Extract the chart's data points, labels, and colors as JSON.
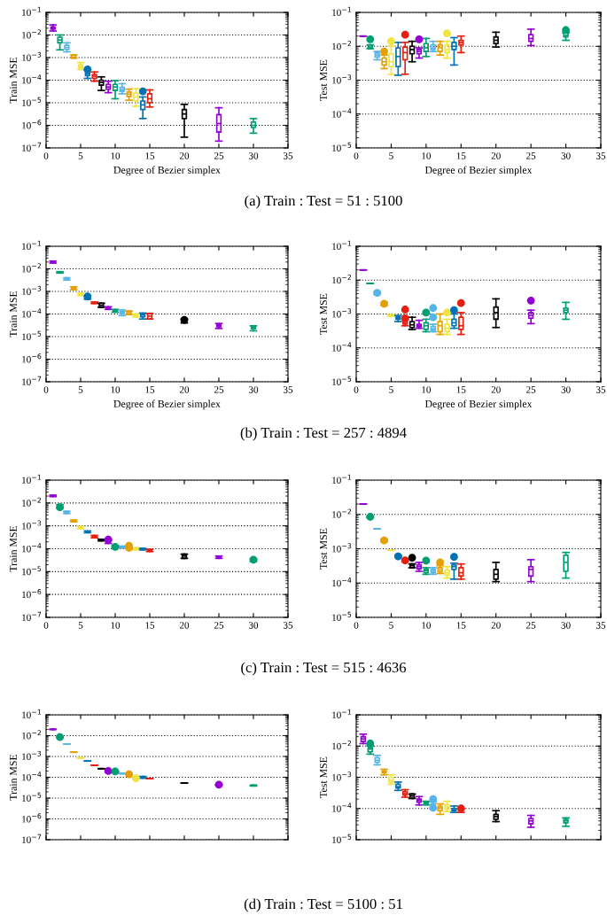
{
  "chart_data": [
    {
      "type": "box",
      "ylabel": "Train MSE",
      "xlabel": "Degree of Bezier simplex",
      "annotations": [
        "(a) Train : Test = 51 : 5100"
      ],
      "x": [
        1,
        2,
        3,
        4,
        5,
        6,
        7,
        8,
        9,
        10,
        11,
        12,
        13,
        14,
        15,
        20,
        25,
        30
      ],
      "colors": [
        "#9400d3",
        "#009e73",
        "#56b4e9",
        "#e69f00",
        "#f0e442",
        "#0072b2",
        "#e51e10",
        "#000000",
        "#9400d3",
        "#009e73",
        "#56b4e9",
        "#e69f00",
        "#f0e442",
        "#0072b2",
        "#e51e10",
        "#000000",
        "#9400d3",
        "#009e73"
      ],
      "boxes": [
        {
          "low": 0.015,
          "q1": 0.018,
          "median": 0.02,
          "q3": 0.023,
          "high": 0.028
        },
        {
          "low": 0.0022,
          "q1": 0.0045,
          "median": 0.006,
          "q3": 0.008,
          "high": 0.01
        },
        {
          "low": 0.0018,
          "q1": 0.0023,
          "median": 0.0028,
          "q3": 0.0035,
          "high": 0.0045
        },
        {
          "low": 0.00095,
          "q1": 0.00095,
          "median": 0.00105,
          "q3": 0.0013,
          "high": 0.0013
        },
        {
          "low": 0.0003,
          "q1": 0.00035,
          "median": 0.0004,
          "q3": 0.00048,
          "high": 0.0006
        },
        {
          "low": 0.00012,
          "q1": 0.00016,
          "median": 0.00019,
          "q3": 0.00023,
          "high": 0.00028,
          "outliers": [
            0.0003
          ]
        },
        {
          "low": 9e-05,
          "q1": 0.00012,
          "median": 0.00015,
          "q3": 0.00018,
          "high": 0.00023
        },
        {
          "low": 3.5e-05,
          "q1": 6e-05,
          "median": 8e-05,
          "q3": 0.0001,
          "high": 0.00014
        },
        {
          "low": 2.8e-05,
          "q1": 4e-05,
          "median": 5e-05,
          "q3": 6.5e-05,
          "high": 9e-05
        },
        {
          "low": 1.5e-05,
          "q1": 3.5e-05,
          "median": 5e-05,
          "q3": 6.5e-05,
          "high": 9.5e-05
        },
        {
          "low": 2.5e-05,
          "q1": 3.2e-05,
          "median": 3.8e-05,
          "q3": 4.8e-05,
          "high": 7e-05
        },
        {
          "low": 1.3e-05,
          "q1": 1.9e-05,
          "median": 2.4e-05,
          "q3": 3e-05,
          "high": 4e-05
        },
        {
          "low": 7e-06,
          "q1": 1.2e-05,
          "median": 1.8e-05,
          "q3": 2.7e-05,
          "high": 4.2e-05
        },
        {
          "low": 2e-06,
          "q1": 5e-06,
          "median": 8e-06,
          "q3": 1.2e-05,
          "high": 1.8e-05,
          "outliers": [
            3.2e-05
          ]
        },
        {
          "low": 6.5e-06,
          "q1": 1e-05,
          "median": 1.5e-05,
          "q3": 2.5e-05,
          "high": 3.7e-05
        },
        {
          "low": 3e-07,
          "q1": 2e-06,
          "median": 3.2e-06,
          "q3": 5e-06,
          "high": 8.5e-06
        },
        {
          "low": 2e-07,
          "q1": 5e-07,
          "median": 1.2e-06,
          "q3": 3e-06,
          "high": 6e-06
        },
        {
          "low": 4.5e-07,
          "q1": 8e-07,
          "median": 1e-06,
          "q3": 1.4e-06,
          "high": 2e-06
        }
      ],
      "xlim": [
        0,
        35
      ],
      "xticks": [
        0,
        5,
        10,
        15,
        20,
        25,
        30,
        35
      ],
      "ylim": [
        1e-07,
        0.1
      ],
      "yticks": [
        {
          "value": 1e-07,
          "label": "10$^{−7}$"
        },
        {
          "value": 1e-06,
          "label": "10$^{−6}$"
        },
        {
          "value": 1e-05,
          "label": "10$^{−5}$"
        },
        {
          "value": 0.0001,
          "label": "10$^{−4}$"
        },
        {
          "value": 0.001,
          "label": "10$^{−3}$"
        },
        {
          "value": 0.01,
          "label": "10$^{−2}$"
        },
        {
          "value": 0.1,
          "label": "10$^{−1}$"
        }
      ],
      "log": "y",
      "grid": "y"
    },
    {
      "type": "box",
      "ylabel": "Test MSE",
      "xlabel": "Degree of Bezier simplex",
      "x": [
        1,
        2,
        3,
        4,
        5,
        6,
        7,
        8,
        9,
        10,
        11,
        12,
        13,
        14,
        15,
        20,
        25,
        30
      ],
      "colors": [
        "#9400d3",
        "#009e73",
        "#56b4e9",
        "#e69f00",
        "#f0e442",
        "#0072b2",
        "#e51e10",
        "#000000",
        "#9400d3",
        "#009e73",
        "#56b4e9",
        "#e69f00",
        "#f0e442",
        "#0072b2",
        "#e51e10",
        "#000000",
        "#9400d3",
        "#009e73"
      ],
      "boxes": [
        {
          "low": 0.02,
          "q1": 0.02,
          "median": 0.02,
          "q3": 0.02,
          "high": 0.02
        },
        {
          "low": 0.0085,
          "q1": 0.0085,
          "median": 0.0095,
          "q3": 0.011,
          "high": 0.011,
          "outliers": [
            0.016
          ]
        },
        {
          "low": 0.004,
          "q1": 0.0048,
          "median": 0.0055,
          "q3": 0.0063,
          "high": 0.007
        },
        {
          "low": 0.0022,
          "q1": 0.0028,
          "median": 0.0035,
          "q3": 0.0045,
          "high": 0.0055,
          "outliers": [
            0.007
          ]
        },
        {
          "low": 0.0015,
          "q1": 0.0025,
          "median": 0.0035,
          "q3": 0.006,
          "high": 0.01,
          "outliers": [
            0.014
          ]
        },
        {
          "low": 0.0014,
          "q1": 0.0025,
          "median": 0.005,
          "q3": 0.009,
          "high": 0.013
        },
        {
          "low": 0.0015,
          "q1": 0.004,
          "median": 0.0065,
          "q3": 0.0095,
          "high": 0.013,
          "outliers": [
            0.022
          ]
        },
        {
          "low": 0.0035,
          "q1": 0.006,
          "median": 0.008,
          "q3": 0.01,
          "high": 0.014
        },
        {
          "low": 0.0045,
          "q1": 0.006,
          "median": 0.007,
          "q3": 0.008,
          "high": 0.009,
          "outliers": [
            0.016
          ]
        },
        {
          "low": 0.005,
          "q1": 0.007,
          "median": 0.009,
          "q3": 0.012,
          "high": 0.017
        },
        {
          "low": 0.007,
          "q1": 0.008,
          "median": 0.009,
          "q3": 0.011,
          "high": 0.014
        },
        {
          "low": 0.0055,
          "q1": 0.007,
          "median": 0.009,
          "q3": 0.011,
          "high": 0.014
        },
        {
          "low": 0.0045,
          "q1": 0.0065,
          "median": 0.008,
          "q3": 0.011,
          "high": 0.014,
          "outliers": [
            0.024
          ]
        },
        {
          "low": 0.0028,
          "q1": 0.008,
          "median": 0.01,
          "q3": 0.013,
          "high": 0.018
        },
        {
          "low": 0.0065,
          "q1": 0.011,
          "median": 0.013,
          "q3": 0.015,
          "high": 0.02
        },
        {
          "low": 0.0095,
          "q1": 0.012,
          "median": 0.015,
          "q3": 0.019,
          "high": 0.026
        },
        {
          "low": 0.0105,
          "q1": 0.014,
          "median": 0.017,
          "q3": 0.022,
          "high": 0.032
        },
        {
          "low": 0.015,
          "q1": 0.019,
          "median": 0.021,
          "q3": 0.025,
          "high": 0.025,
          "outliers": [
            0.03
          ]
        }
      ],
      "xlim": [
        0,
        35
      ],
      "xticks": [
        0,
        5,
        10,
        15,
        20,
        25,
        30,
        35
      ],
      "ylim": [
        1e-05,
        0.1
      ],
      "yticks": [
        {
          "value": 1e-05,
          "label": "10$^{−5}$"
        },
        {
          "value": 0.0001,
          "label": "10$^{−4}$"
        },
        {
          "value": 0.001,
          "label": "10$^{−3}$"
        },
        {
          "value": 0.01,
          "label": "10$^{−2}$"
        },
        {
          "value": 0.1,
          "label": "10$^{−1}$"
        }
      ],
      "log": "y",
      "grid": "y"
    },
    {
      "type": "box",
      "ylabel": "Train MSE",
      "xlabel": "Degree of Bezier simplex",
      "annotations": [
        "(b) Train : Test = 257 : 4894"
      ],
      "x": [
        1,
        2,
        3,
        4,
        5,
        6,
        7,
        8,
        9,
        10,
        11,
        12,
        13,
        14,
        15,
        20,
        25,
        30
      ],
      "colors": [
        "#9400d3",
        "#009e73",
        "#56b4e9",
        "#e69f00",
        "#f0e442",
        "#0072b2",
        "#e51e10",
        "#000000",
        "#9400d3",
        "#009e73",
        "#56b4e9",
        "#e69f00",
        "#f0e442",
        "#0072b2",
        "#e51e10",
        "#000000",
        "#9400d3",
        "#009e73"
      ],
      "boxes": [
        {
          "low": 0.018,
          "q1": 0.019,
          "median": 0.02,
          "q3": 0.021,
          "high": 0.022
        },
        {
          "low": 0.0065,
          "q1": 0.0068,
          "median": 0.007,
          "q3": 0.0072,
          "high": 0.0075
        },
        {
          "low": 0.0032,
          "q1": 0.0032,
          "median": 0.0036,
          "q3": 0.004,
          "high": 0.004
        },
        {
          "low": 0.0012,
          "q1": 0.0013,
          "median": 0.0014,
          "q3": 0.0015,
          "high": 0.0016
        },
        {
          "low": 0.00065,
          "q1": 0.0007,
          "median": 0.00075,
          "q3": 0.0008,
          "high": 0.00085
        },
        {
          "low": 0.00045,
          "q1": 0.0005,
          "median": 0.00055,
          "q3": 0.0006,
          "high": 0.00065,
          "outliers": [
            0.0006
          ]
        },
        {
          "low": 0.00029,
          "q1": 0.0003,
          "median": 0.00031,
          "q3": 0.00032,
          "high": 0.00034
        },
        {
          "low": 0.0002,
          "q1": 0.0002,
          "median": 0.00024,
          "q3": 0.0003,
          "high": 0.0003
        },
        {
          "low": 0.00016,
          "q1": 0.00017,
          "median": 0.00018,
          "q3": 0.00019,
          "high": 0.00021
        },
        {
          "low": 0.00012,
          "q1": 0.00013,
          "median": 0.00014,
          "q3": 0.00015,
          "high": 0.00016
        },
        {
          "low": 8.5e-05,
          "q1": 0.0001,
          "median": 0.000115,
          "q3": 0.00013,
          "high": 0.00015
        },
        {
          "low": 9.5e-05,
          "q1": 9.5e-05,
          "median": 0.000115,
          "q3": 0.000135,
          "high": 0.000135
        },
        {
          "low": 7.5e-05,
          "q1": 7.5e-05,
          "median": 8.5e-05,
          "q3": 0.0001,
          "high": 0.0001
        },
        {
          "low": 6e-05,
          "q1": 7.5e-05,
          "median": 9e-05,
          "q3": 0.0001,
          "high": 0.00011
        },
        {
          "low": 6e-05,
          "q1": 6e-05,
          "median": 8e-05,
          "q3": 0.000105,
          "high": 0.000105
        },
        {
          "low": 4e-05,
          "q1": 4.5e-05,
          "median": 5e-05,
          "q3": 5.5e-05,
          "high": 6e-05,
          "outliers": [
            5.5e-05
          ]
        },
        {
          "low": 2.3e-05,
          "q1": 2.7e-05,
          "median": 3e-05,
          "q3": 3.3e-05,
          "high": 3.8e-05
        },
        {
          "low": 1.8e-05,
          "q1": 2.2e-05,
          "median": 2.5e-05,
          "q3": 2.8e-05,
          "high": 3e-05
        }
      ],
      "xlim": [
        0,
        35
      ],
      "xticks": [
        0,
        5,
        10,
        15,
        20,
        25,
        30,
        35
      ],
      "ylim": [
        1e-07,
        0.1
      ],
      "yticks": [
        {
          "value": 1e-07,
          "label": "10$^{−7}$"
        },
        {
          "value": 1e-06,
          "label": "10$^{−6}$"
        },
        {
          "value": 1e-05,
          "label": "10$^{−5}$"
        },
        {
          "value": 0.0001,
          "label": "10$^{−4}$"
        },
        {
          "value": 0.001,
          "label": "10$^{−3}$"
        },
        {
          "value": 0.01,
          "label": "10$^{−2}$"
        },
        {
          "value": 0.1,
          "label": "10$^{−1}$"
        }
      ],
      "log": "y",
      "grid": "y"
    },
    {
      "type": "box",
      "ylabel": "Test MSE",
      "xlabel": "Degree of Bezier simplex",
      "x": [
        1,
        2,
        3,
        4,
        5,
        6,
        7,
        8,
        9,
        10,
        11,
        12,
        13,
        14,
        15,
        20,
        25,
        30
      ],
      "colors": [
        "#9400d3",
        "#009e73",
        "#56b4e9",
        "#e69f00",
        "#f0e442",
        "#0072b2",
        "#e51e10",
        "#000000",
        "#9400d3",
        "#009e73",
        "#56b4e9",
        "#e69f00",
        "#f0e442",
        "#0072b2",
        "#e51e10",
        "#000000",
        "#9400d3",
        "#009e73"
      ],
      "boxes": [
        {
          "low": 0.02,
          "q1": 0.02,
          "median": 0.02,
          "q3": 0.02,
          "high": 0.02
        },
        {
          "low": 0.008,
          "q1": 0.008,
          "median": 0.008,
          "q3": 0.008,
          "high": 0.008
        },
        {
          "low": 0.0038,
          "q1": 0.004,
          "median": 0.0041,
          "q3": 0.0043,
          "high": 0.0045,
          "outliers": [
            0.0042
          ]
        },
        {
          "low": 0.0018,
          "q1": 0.0019,
          "median": 0.002,
          "q3": 0.0021,
          "high": 0.0022,
          "outliers": [
            0.002
          ]
        },
        {
          "low": 0.00085,
          "q1": 0.00088,
          "median": 0.0009,
          "q3": 0.00093,
          "high": 0.00095
        },
        {
          "low": 0.0006,
          "q1": 0.0007,
          "median": 0.00075,
          "q3": 0.00082,
          "high": 0.0009
        },
        {
          "low": 0.00045,
          "q1": 0.0005,
          "median": 0.00055,
          "q3": 0.00065,
          "high": 0.0007,
          "outliers": [
            0.00135,
            0.00075
          ]
        },
        {
          "low": 0.00035,
          "q1": 0.0004,
          "median": 0.00048,
          "q3": 0.0006,
          "high": 0.0008
        },
        {
          "low": 0.00038,
          "q1": 0.00042,
          "median": 0.00045,
          "q3": 0.0005,
          "high": 0.00065
        },
        {
          "low": 0.0003,
          "q1": 0.00035,
          "median": 0.00045,
          "q3": 0.00055,
          "high": 0.0007,
          "outliers": [
            0.0011
          ]
        },
        {
          "low": 0.0003,
          "q1": 0.00033,
          "median": 0.00037,
          "q3": 0.00043,
          "high": 0.0005,
          "outliers": [
            0.0015,
            0.0008
          ]
        },
        {
          "low": 0.00025,
          "q1": 0.0003,
          "median": 0.00045,
          "q3": 0.0006,
          "high": 0.001
        },
        {
          "low": 0.00025,
          "q1": 0.0003,
          "median": 0.00038,
          "q3": 0.0005,
          "high": 0.0007,
          "outliers": [
            0.0011
          ]
        },
        {
          "low": 0.00038,
          "q1": 0.00045,
          "median": 0.00055,
          "q3": 0.0007,
          "high": 0.001,
          "outliers": [
            0.0013
          ]
        },
        {
          "low": 0.00025,
          "q1": 0.00035,
          "median": 0.00045,
          "q3": 0.0008,
          "high": 0.0011,
          "outliers": [
            0.0021
          ]
        },
        {
          "low": 0.0004,
          "q1": 0.0007,
          "median": 0.0011,
          "q3": 0.0016,
          "high": 0.0028
        },
        {
          "low": 0.00052,
          "q1": 0.00075,
          "median": 0.0009,
          "q3": 0.0011,
          "high": 0.0013,
          "outliers": [
            0.0025
          ]
        },
        {
          "low": 0.0007,
          "q1": 0.0011,
          "median": 0.0013,
          "q3": 0.0015,
          "high": 0.0022
        }
      ],
      "xlim": [
        0,
        35
      ],
      "xticks": [
        0,
        5,
        10,
        15,
        20,
        25,
        30,
        35
      ],
      "ylim": [
        1e-05,
        0.1
      ],
      "yticks": [
        {
          "value": 1e-05,
          "label": "10$^{−5}$"
        },
        {
          "value": 0.0001,
          "label": "10$^{−4}$"
        },
        {
          "value": 0.001,
          "label": "10$^{−3}$"
        },
        {
          "value": 0.01,
          "label": "10$^{−2}$"
        },
        {
          "value": 0.1,
          "label": "10$^{−1}$"
        }
      ],
      "log": "y",
      "grid": "y"
    },
    {
      "type": "box",
      "ylabel": "Train MSE",
      "annotations": [
        "(c) Train : Test = 515 : 4636"
      ],
      "x": [
        1,
        2,
        3,
        4,
        5,
        6,
        7,
        8,
        9,
        10,
        11,
        12,
        13,
        14,
        15,
        20,
        25,
        30
      ],
      "colors": [
        "#9400d3",
        "#009e73",
        "#56b4e9",
        "#e69f00",
        "#f0e442",
        "#0072b2",
        "#e51e10",
        "#000000",
        "#9400d3",
        "#009e73",
        "#56b4e9",
        "#e69f00",
        "#f0e442",
        "#0072b2",
        "#e51e10",
        "#000000",
        "#9400d3",
        "#009e73"
      ],
      "boxes": [
        {
          "low": 0.019,
          "q1": 0.02,
          "median": 0.0205,
          "q3": 0.021,
          "high": 0.022
        },
        {
          "low": 0.006,
          "q1": 0.0065,
          "median": 0.007,
          "q3": 0.0075,
          "high": 0.0085,
          "outliers": [
            0.0065
          ]
        },
        {
          "low": 0.0035,
          "q1": 0.0035,
          "median": 0.0039,
          "q3": 0.0043,
          "high": 0.0043
        },
        {
          "low": 0.0015,
          "q1": 0.0016,
          "median": 0.00165,
          "q3": 0.0017,
          "high": 0.0018
        },
        {
          "low": 0.00075,
          "q1": 0.0008,
          "median": 0.00085,
          "q3": 0.0009,
          "high": 0.00095
        },
        {
          "low": 0.0005,
          "q1": 0.00052,
          "median": 0.00055,
          "q3": 0.00057,
          "high": 0.0006
        },
        {
          "low": 0.0003,
          "q1": 0.0003,
          "median": 0.00034,
          "q3": 0.00038,
          "high": 0.00038
        },
        {
          "low": 0.00022,
          "q1": 0.00023,
          "median": 0.00024,
          "q3": 0.00025,
          "high": 0.00026
        },
        {
          "low": 0.00017,
          "q1": 0.00019,
          "median": 0.0002,
          "q3": 0.00021,
          "high": 0.00023,
          "outliers": [
            0.00025
          ]
        },
        {
          "low": 0.00011,
          "q1": 0.00012,
          "median": 0.000125,
          "q3": 0.00013,
          "high": 0.00014,
          "outliers": [
            0.00012
          ]
        },
        {
          "low": 0.00011,
          "q1": 0.000115,
          "median": 0.00012,
          "q3": 0.000125,
          "high": 0.00013
        },
        {
          "low": 0.0001,
          "q1": 0.000105,
          "median": 0.00011,
          "q3": 0.00012,
          "high": 0.00013,
          "outliers": [
            0.000135,
            0.00011
          ]
        },
        {
          "low": 9e-05,
          "q1": 9e-05,
          "median": 0.0001,
          "q3": 0.00011,
          "high": 0.00011
        },
        {
          "low": 9e-05,
          "q1": 9e-05,
          "median": 9.6e-05,
          "q3": 0.000103,
          "high": 0.000103
        },
        {
          "low": 7.5e-05,
          "q1": 8e-05,
          "median": 8.5e-05,
          "q3": 9e-05,
          "high": 9.5e-05
        },
        {
          "low": 3.8e-05,
          "q1": 3.8e-05,
          "median": 4.8e-05,
          "q3": 5.8e-05,
          "high": 5.8e-05
        },
        {
          "low": 3.8e-05,
          "q1": 4e-05,
          "median": 4.2e-05,
          "q3": 4.5e-05,
          "high": 4.8e-05
        },
        {
          "low": 2.8e-05,
          "q1": 3e-05,
          "median": 3.2e-05,
          "q3": 3.4e-05,
          "high": 3.6e-05,
          "outliers": [
            3.3e-05
          ]
        }
      ],
      "xlim": [
        0,
        35
      ],
      "xticks": [
        0,
        5,
        10,
        15,
        20,
        25,
        30,
        35
      ],
      "ylim": [
        1e-07,
        0.1
      ],
      "yticks": [
        {
          "value": 1e-07,
          "label": "10$^{−7}$"
        },
        {
          "value": 1e-06,
          "label": "10$^{−6}$"
        },
        {
          "value": 1e-05,
          "label": "10$^{−5}$"
        },
        {
          "value": 0.0001,
          "label": "10$^{−4}$"
        },
        {
          "value": 0.001,
          "label": "10$^{−3}$"
        },
        {
          "value": 0.01,
          "label": "10$^{−2}$"
        },
        {
          "value": 0.1,
          "label": "10$^{−1}$"
        }
      ],
      "log": "y",
      "grid": "y"
    },
    {
      "type": "box",
      "ylabel": "Test MSE",
      "x": [
        1,
        2,
        3,
        4,
        5,
        6,
        7,
        8,
        9,
        10,
        11,
        12,
        13,
        14,
        15,
        20,
        25,
        30
      ],
      "colors": [
        "#9400d3",
        "#009e73",
        "#56b4e9",
        "#e69f00",
        "#f0e442",
        "#0072b2",
        "#e51e10",
        "#000000",
        "#9400d3",
        "#009e73",
        "#56b4e9",
        "#e69f00",
        "#f0e442",
        "#0072b2",
        "#e51e10",
        "#000000",
        "#9400d3",
        "#009e73"
      ],
      "boxes": [
        {
          "low": 0.02,
          "q1": 0.02,
          "median": 0.02,
          "q3": 0.02,
          "high": 0.02
        },
        {
          "low": 0.008,
          "q1": 0.0083,
          "median": 0.0085,
          "q3": 0.0088,
          "high": 0.009,
          "outliers": [
            0.0085
          ]
        },
        {
          "low": 0.0038,
          "q1": 0.0038,
          "median": 0.0038,
          "q3": 0.0038,
          "high": 0.0038
        },
        {
          "low": 0.0016,
          "q1": 0.0017,
          "median": 0.00175,
          "q3": 0.0018,
          "high": 0.0019,
          "outliers": [
            0.00175
          ]
        },
        {
          "low": 0.0009,
          "q1": 0.0009,
          "median": 0.0009,
          "q3": 0.0009,
          "high": 0.0009
        },
        {
          "low": 0.00058,
          "q1": 0.00058,
          "median": 0.00061,
          "q3": 0.00065,
          "high": 0.00065,
          "outliers": [
            0.0006
          ]
        },
        {
          "low": 0.00042,
          "q1": 0.00042,
          "median": 0.00046,
          "q3": 0.0005,
          "high": 0.0005,
          "outliers": [
            0.00046
          ]
        },
        {
          "low": 0.00028,
          "q1": 0.00028,
          "median": 0.00032,
          "q3": 0.00036,
          "high": 0.00036,
          "outliers": [
            0.00055
          ]
        },
        {
          "low": 0.00022,
          "q1": 0.00026,
          "median": 0.0003,
          "q3": 0.00034,
          "high": 0.0004
        },
        {
          "low": 0.00018,
          "q1": 0.0002,
          "median": 0.00023,
          "q3": 0.00025,
          "high": 0.00028,
          "outliers": [
            0.00045
          ]
        },
        {
          "low": 0.00018,
          "q1": 0.0002,
          "median": 0.00022,
          "q3": 0.00025,
          "high": 0.00028
        },
        {
          "low": 0.00019,
          "q1": 0.00021,
          "median": 0.00024,
          "q3": 0.00028,
          "high": 0.00032,
          "outliers": [
            0.0004
          ]
        },
        {
          "low": 0.00014,
          "q1": 0.00017,
          "median": 0.0002,
          "q3": 0.00024,
          "high": 0.0003
        },
        {
          "low": 0.00013,
          "q1": 0.00025,
          "median": 0.0003,
          "q3": 0.00034,
          "high": 0.00038,
          "outliers": [
            0.00058
          ]
        },
        {
          "low": 0.00013,
          "q1": 0.00016,
          "median": 0.0002,
          "q3": 0.00028,
          "high": 0.00036
        },
        {
          "low": 0.00011,
          "q1": 0.00013,
          "median": 0.00018,
          "q3": 0.00025,
          "high": 0.0004
        },
        {
          "low": 0.00011,
          "q1": 0.00016,
          "median": 0.00025,
          "q3": 0.0003,
          "high": 0.00048
        },
        {
          "low": 0.00014,
          "q1": 0.00022,
          "median": 0.0004,
          "q3": 0.00065,
          "high": 0.00078
        }
      ],
      "xlim": [
        0,
        35
      ],
      "xticks": [
        0,
        5,
        10,
        15,
        20,
        25,
        30,
        35
      ],
      "ylim": [
        1e-05,
        0.1
      ],
      "yticks": [
        {
          "value": 1e-05,
          "label": "10$^{−5}$"
        },
        {
          "value": 0.0001,
          "label": "10$^{−4}$"
        },
        {
          "value": 0.001,
          "label": "10$^{−3}$"
        },
        {
          "value": 0.01,
          "label": "10$^{−2}$"
        },
        {
          "value": 0.1,
          "label": "10$^{−1}$"
        }
      ],
      "log": "y",
      "grid": "y"
    },
    {
      "type": "box",
      "ylabel": "Train MSE",
      "annotations": [
        "(d) Train : Test = 5100 : 51"
      ],
      "x": [
        1,
        2,
        3,
        4,
        5,
        6,
        7,
        8,
        9,
        10,
        11,
        12,
        13,
        14,
        15,
        20,
        25,
        30
      ],
      "colors": [
        "#9400d3",
        "#009e73",
        "#56b4e9",
        "#e69f00",
        "#f0e442",
        "#0072b2",
        "#e51e10",
        "#000000",
        "#9400d3",
        "#009e73",
        "#56b4e9",
        "#e69f00",
        "#f0e442",
        "#0072b2",
        "#e51e10",
        "#000000",
        "#9400d3",
        "#009e73"
      ],
      "boxes": [
        {
          "low": 0.02,
          "q1": 0.02,
          "median": 0.02,
          "q3": 0.02,
          "high": 0.02
        },
        {
          "low": 0.0085,
          "q1": 0.0085,
          "median": 0.0085,
          "q3": 0.0085,
          "high": 0.0085,
          "outliers": [
            0.0085
          ]
        },
        {
          "low": 0.004,
          "q1": 0.004,
          "median": 0.004,
          "q3": 0.004,
          "high": 0.004
        },
        {
          "low": 0.0016,
          "q1": 0.0016,
          "median": 0.0016,
          "q3": 0.0016,
          "high": 0.0016
        },
        {
          "low": 0.00085,
          "q1": 0.00085,
          "median": 0.00085,
          "q3": 0.00085,
          "high": 0.00085
        },
        {
          "low": 0.0006,
          "q1": 0.0006,
          "median": 0.0006,
          "q3": 0.0006,
          "high": 0.0006
        },
        {
          "low": 0.00038,
          "q1": 0.00038,
          "median": 0.00038,
          "q3": 0.00038,
          "high": 0.00038
        },
        {
          "low": 0.00026,
          "q1": 0.00026,
          "median": 0.00026,
          "q3": 0.00026,
          "high": 0.00026
        },
        {
          "low": 0.00019,
          "q1": 0.000195,
          "median": 0.0002,
          "q3": 0.000205,
          "high": 0.00021,
          "outliers": [
            0.0002
          ]
        },
        {
          "low": 0.00018,
          "q1": 0.00018,
          "median": 0.00018,
          "q3": 0.00018,
          "high": 0.00018,
          "outliers": [
            0.00019
          ]
        },
        {
          "low": 0.00015,
          "q1": 0.00015,
          "median": 0.00015,
          "q3": 0.00015,
          "high": 0.00015
        },
        {
          "low": 0.00013,
          "q1": 0.000135,
          "median": 0.00014,
          "q3": 0.000145,
          "high": 0.00015,
          "outliers": [
            0.00014
          ]
        },
        {
          "low": 9e-05,
          "q1": 9e-05,
          "median": 9e-05,
          "q3": 9e-05,
          "high": 9e-05,
          "outliers": [
            9e-05
          ]
        },
        {
          "low": 9e-05,
          "q1": 9.5e-05,
          "median": 0.0001,
          "q3": 0.000105,
          "high": 0.00011
        },
        {
          "low": 8.5e-05,
          "q1": 8.5e-05,
          "median": 8.5e-05,
          "q3": 8.5e-05,
          "high": 8.5e-05
        },
        {
          "low": 5.3e-05,
          "q1": 5.3e-05,
          "median": 5.3e-05,
          "q3": 5.3e-05,
          "high": 5.3e-05
        },
        {
          "low": 4.3e-05,
          "q1": 4.3e-05,
          "median": 4.3e-05,
          "q3": 4.3e-05,
          "high": 4.3e-05,
          "outliers": [
            4.4e-05
          ]
        },
        {
          "low": 3.8e-05,
          "q1": 3.9e-05,
          "median": 4e-05,
          "q3": 4.1e-05,
          "high": 4.2e-05
        }
      ],
      "xlim": [
        0,
        35
      ],
      "xticks": [
        0,
        5,
        10,
        15,
        20,
        25,
        30,
        35
      ],
      "ylim": [
        1e-07,
        0.1
      ],
      "yticks": [
        {
          "value": 1e-07,
          "label": "10$^{−7}$"
        },
        {
          "value": 1e-06,
          "label": "10$^{−6}$"
        },
        {
          "value": 1e-05,
          "label": "10$^{−5}$"
        },
        {
          "value": 0.0001,
          "label": "10$^{−4}$"
        },
        {
          "value": 0.001,
          "label": "10$^{−3}$"
        },
        {
          "value": 0.01,
          "label": "10$^{−2}$"
        },
        {
          "value": 0.1,
          "label": "10$^{−1}$"
        }
      ],
      "log": "y",
      "grid": "y",
      "tick_labels": "y"
    },
    {
      "type": "box",
      "ylabel": "Test MSE",
      "x": [
        1,
        2,
        3,
        4,
        5,
        6,
        7,
        8,
        9,
        10,
        11,
        12,
        13,
        14,
        15,
        20,
        25,
        30
      ],
      "colors": [
        "#9400d3",
        "#009e73",
        "#56b4e9",
        "#e69f00",
        "#f0e442",
        "#0072b2",
        "#e51e10",
        "#000000",
        "#9400d3",
        "#009e73",
        "#56b4e9",
        "#e69f00",
        "#f0e442",
        "#0072b2",
        "#e51e10",
        "#000000",
        "#9400d3",
        "#009e73"
      ],
      "boxes": [
        {
          "low": 0.012,
          "q1": 0.014,
          "median": 0.017,
          "q3": 0.02,
          "high": 0.024
        },
        {
          "low": 0.0055,
          "q1": 0.0065,
          "median": 0.008,
          "q3": 0.009,
          "high": 0.01,
          "outliers": [
            0.012
          ]
        },
        {
          "low": 0.0025,
          "q1": 0.003,
          "median": 0.0035,
          "q3": 0.0042,
          "high": 0.005
        },
        {
          "low": 0.0012,
          "q1": 0.0014,
          "median": 0.0015,
          "q3": 0.0016,
          "high": 0.0018
        },
        {
          "low": 0.0006,
          "q1": 0.0007,
          "median": 0.0008,
          "q3": 0.001,
          "high": 0.0012
        },
        {
          "low": 0.00038,
          "q1": 0.00045,
          "median": 0.0005,
          "q3": 0.0006,
          "high": 0.0007
        },
        {
          "low": 0.00023,
          "q1": 0.00027,
          "median": 0.0003,
          "q3": 0.00035,
          "high": 0.0004
        },
        {
          "low": 0.00021,
          "q1": 0.00021,
          "median": 0.00025,
          "q3": 0.00029,
          "high": 0.00029
        },
        {
          "low": 0.00013,
          "q1": 0.00016,
          "median": 0.00018,
          "q3": 0.0002,
          "high": 0.00024
        },
        {
          "low": 0.00013,
          "q1": 0.00014,
          "median": 0.00015,
          "q3": 0.00016,
          "high": 0.00017
        },
        {
          "low": 0.0001,
          "q1": 0.00011,
          "median": 0.00012,
          "q3": 0.00014,
          "high": 0.00016,
          "outliers": [
            0.0002,
            0.000105
          ]
        },
        {
          "low": 6.5e-05,
          "q1": 8.5e-05,
          "median": 0.000105,
          "q3": 0.00012,
          "high": 0.00014
        },
        {
          "low": 8e-05,
          "q1": 9.5e-05,
          "median": 0.00011,
          "q3": 0.00013,
          "high": 0.00017
        },
        {
          "low": 7.5e-05,
          "q1": 8.5e-05,
          "median": 9e-05,
          "q3": 0.0001,
          "high": 0.00012
        },
        {
          "low": 7.5e-05,
          "q1": 8.5e-05,
          "median": 9e-05,
          "q3": 9.5e-05,
          "high": 0.0001,
          "outliers": [
            0.0001
          ]
        },
        {
          "low": 3.8e-05,
          "q1": 4.5e-05,
          "median": 5.5e-05,
          "q3": 6.5e-05,
          "high": 8.5e-05
        },
        {
          "low": 2.5e-05,
          "q1": 3.2e-05,
          "median": 4e-05,
          "q3": 4.8e-05,
          "high": 6e-05
        },
        {
          "low": 2.7e-05,
          "q1": 3.5e-05,
          "median": 4e-05,
          "q3": 4.5e-05,
          "high": 5e-05
        }
      ],
      "xlim": [
        0,
        35
      ],
      "xticks": [
        0,
        5,
        10,
        15,
        20,
        25,
        30,
        35
      ],
      "ylim": [
        1e-05,
        0.1
      ],
      "yticks": [
        {
          "value": 1e-05,
          "label": "10$^{−5}$"
        },
        {
          "value": 0.0001,
          "label": "10$^{−4}$"
        },
        {
          "value": 0.001,
          "label": "10$^{−3}$"
        },
        {
          "value": 0.01,
          "label": "10$^{−2}$"
        },
        {
          "value": 0.1,
          "label": "10$^{−1}$"
        }
      ],
      "log": "y",
      "grid": "y",
      "tick_labels": "y"
    }
  ]
}
